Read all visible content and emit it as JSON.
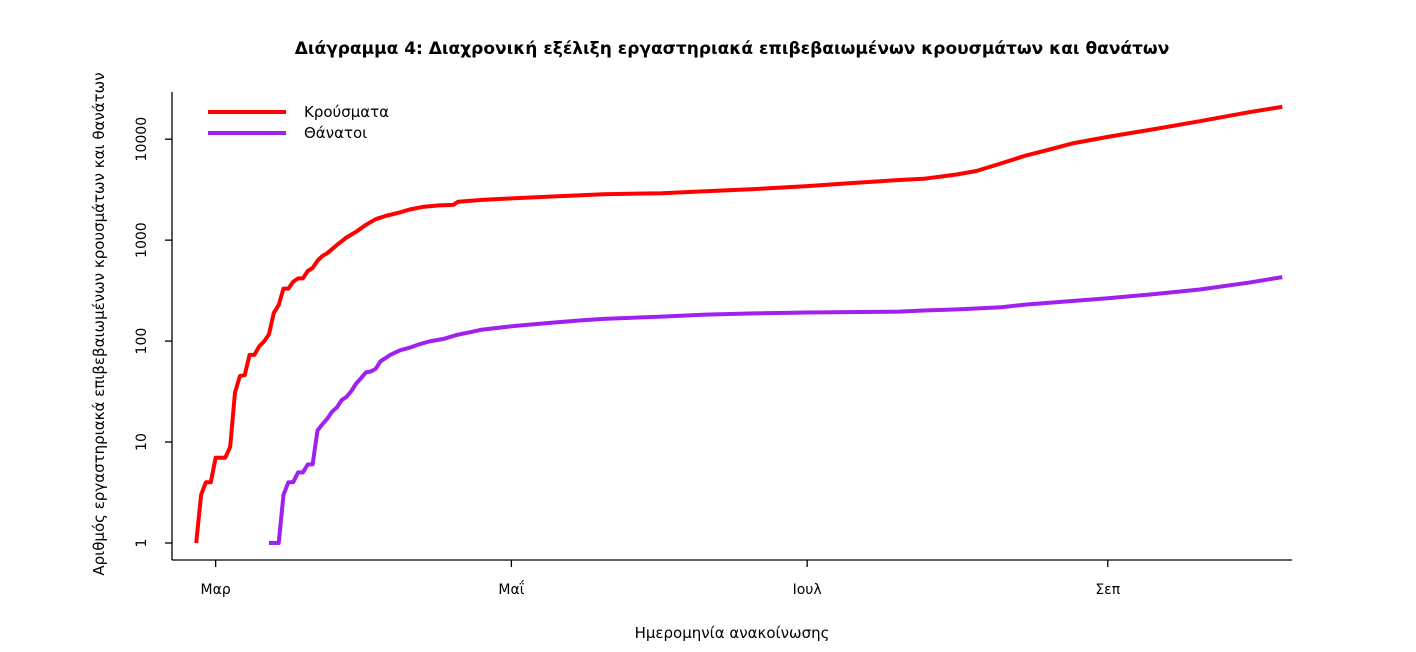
{
  "chart_data": {
    "type": "line",
    "title": "Διάγραμμα 4: Διαχρονική εξέλιξη εργαστηριακά επιβεβαιωμένων κρουσμάτων και θανάτων",
    "xlabel": "Ημερομηνία ανακοίνωσης",
    "ylabel": "Αριθμός εργαστηριακά επιβεβαιωμένων κρουσμάτων και θανάτων",
    "y_scale": "log",
    "ylim": [
      1,
      25000
    ],
    "xlim": [
      "2020-02-21",
      "2020-10-09"
    ],
    "y_ticks": [
      {
        "value": 1,
        "label": "1"
      },
      {
        "value": 10,
        "label": "10"
      },
      {
        "value": 100,
        "label": "100"
      },
      {
        "value": 1000,
        "label": "1000"
      },
      {
        "value": 10000,
        "label": "10000"
      }
    ],
    "x_ticks": [
      {
        "date": "2020-03-01",
        "label": "Μαρ"
      },
      {
        "date": "2020-05-01",
        "label": "Μαΐ"
      },
      {
        "date": "2020-07-01",
        "label": "Ιουλ"
      },
      {
        "date": "2020-09-01",
        "label": "Σεπ"
      }
    ],
    "legend_position": "top-left",
    "grid": false,
    "series": [
      {
        "name": "Κρούσματα",
        "color": "#ff0000",
        "points": [
          [
            "2020-02-26",
            1
          ],
          [
            "2020-02-27",
            3
          ],
          [
            "2020-02-28",
            4
          ],
          [
            "2020-02-29",
            4
          ],
          [
            "2020-03-01",
            7
          ],
          [
            "2020-03-03",
            7
          ],
          [
            "2020-03-04",
            9
          ],
          [
            "2020-03-05",
            31
          ],
          [
            "2020-03-06",
            45
          ],
          [
            "2020-03-07",
            46
          ],
          [
            "2020-03-08",
            73
          ],
          [
            "2020-03-09",
            73
          ],
          [
            "2020-03-10",
            89
          ],
          [
            "2020-03-11",
            99
          ],
          [
            "2020-03-12",
            117
          ],
          [
            "2020-03-13",
            190
          ],
          [
            "2020-03-14",
            228
          ],
          [
            "2020-03-15",
            331
          ],
          [
            "2020-03-16",
            331
          ],
          [
            "2020-03-17",
            387
          ],
          [
            "2020-03-18",
            418
          ],
          [
            "2020-03-19",
            418
          ],
          [
            "2020-03-20",
            495
          ],
          [
            "2020-03-21",
            530
          ],
          [
            "2020-03-22",
            624
          ],
          [
            "2020-03-23",
            695
          ],
          [
            "2020-03-24",
            743
          ],
          [
            "2020-03-26",
            892
          ],
          [
            "2020-03-28",
            1061
          ],
          [
            "2020-03-30",
            1212
          ],
          [
            "2020-04-01",
            1415
          ],
          [
            "2020-04-03",
            1613
          ],
          [
            "2020-04-05",
            1735
          ],
          [
            "2020-04-08",
            1884
          ],
          [
            "2020-04-10",
            2011
          ],
          [
            "2020-04-13",
            2145
          ],
          [
            "2020-04-16",
            2207
          ],
          [
            "2020-04-19",
            2235
          ],
          [
            "2020-04-20",
            2401
          ],
          [
            "2020-04-25",
            2506
          ],
          [
            "2020-05-01",
            2591
          ],
          [
            "2020-05-10",
            2710
          ],
          [
            "2020-05-20",
            2850
          ],
          [
            "2020-06-01",
            2917
          ],
          [
            "2020-06-10",
            3049
          ],
          [
            "2020-06-20",
            3206
          ],
          [
            "2020-07-01",
            3432
          ],
          [
            "2020-07-10",
            3672
          ],
          [
            "2020-07-20",
            3939
          ],
          [
            "2020-07-25",
            4050
          ],
          [
            "2020-08-01",
            4477
          ],
          [
            "2020-08-05",
            4855
          ],
          [
            "2020-08-10",
            5749
          ],
          [
            "2020-08-15",
            6858
          ],
          [
            "2020-08-20",
            7903
          ],
          [
            "2020-08-25",
            9136
          ],
          [
            "2020-09-01",
            10524
          ],
          [
            "2020-09-10",
            12452
          ],
          [
            "2020-09-20",
            15063
          ],
          [
            "2020-09-30",
            18475
          ],
          [
            "2020-10-07",
            20947
          ]
        ]
      },
      {
        "name": "Θάνατοι",
        "color": "#a020f0",
        "points": [
          [
            "2020-03-12",
            1
          ],
          [
            "2020-03-14",
            1
          ],
          [
            "2020-03-15",
            3
          ],
          [
            "2020-03-16",
            4
          ],
          [
            "2020-03-17",
            4
          ],
          [
            "2020-03-18",
            5
          ],
          [
            "2020-03-19",
            5
          ],
          [
            "2020-03-20",
            6
          ],
          [
            "2020-03-21",
            6
          ],
          [
            "2020-03-22",
            13
          ],
          [
            "2020-03-23",
            15
          ],
          [
            "2020-03-24",
            17
          ],
          [
            "2020-03-25",
            20
          ],
          [
            "2020-03-26",
            22
          ],
          [
            "2020-03-27",
            26
          ],
          [
            "2020-03-28",
            28
          ],
          [
            "2020-03-29",
            32
          ],
          [
            "2020-03-30",
            38
          ],
          [
            "2020-03-31",
            43
          ],
          [
            "2020-04-01",
            49
          ],
          [
            "2020-04-02",
            50
          ],
          [
            "2020-04-03",
            53
          ],
          [
            "2020-04-04",
            63
          ],
          [
            "2020-04-06",
            73
          ],
          [
            "2020-04-08",
            81
          ],
          [
            "2020-04-10",
            86
          ],
          [
            "2020-04-12",
            93
          ],
          [
            "2020-04-14",
            99
          ],
          [
            "2020-04-17",
            105
          ],
          [
            "2020-04-20",
            116
          ],
          [
            "2020-04-22",
            121
          ],
          [
            "2020-04-25",
            130
          ],
          [
            "2020-05-01",
            140
          ],
          [
            "2020-05-08",
            150
          ],
          [
            "2020-05-15",
            160
          ],
          [
            "2020-05-20",
            166
          ],
          [
            "2020-06-01",
            175
          ],
          [
            "2020-06-10",
            183
          ],
          [
            "2020-06-20",
            188
          ],
          [
            "2020-07-01",
            192
          ],
          [
            "2020-07-20",
            196
          ],
          [
            "2020-07-25",
            201
          ],
          [
            "2020-08-01",
            206
          ],
          [
            "2020-08-10",
            216
          ],
          [
            "2020-08-15",
            230
          ],
          [
            "2020-08-25",
            250
          ],
          [
            "2020-09-01",
            266
          ],
          [
            "2020-09-10",
            290
          ],
          [
            "2020-09-20",
            324
          ],
          [
            "2020-09-30",
            379
          ],
          [
            "2020-10-07",
            430
          ]
        ]
      }
    ]
  }
}
